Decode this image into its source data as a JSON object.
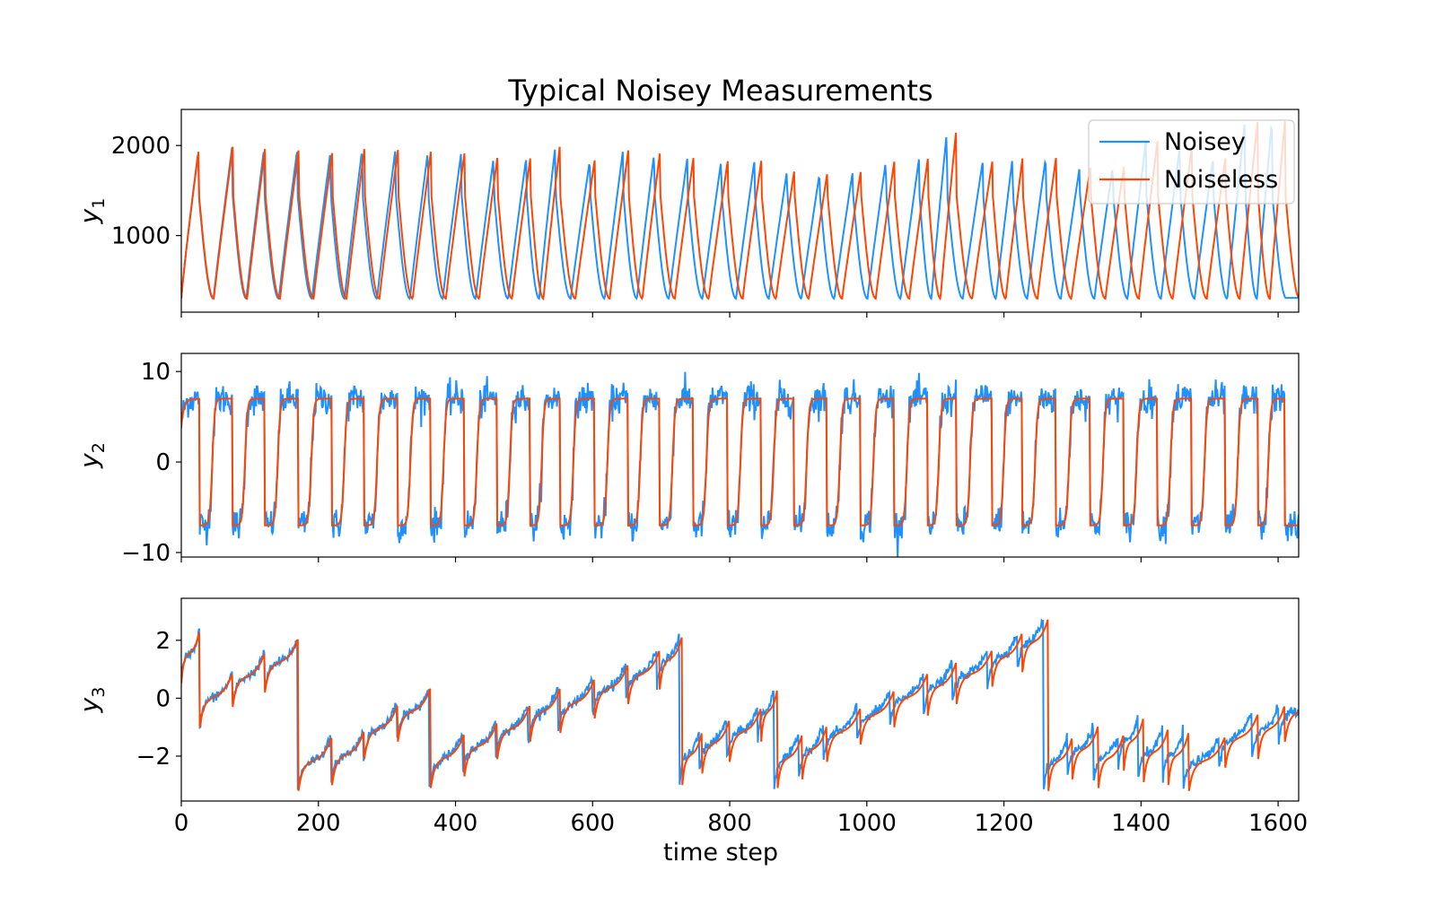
{
  "colors": {
    "noisy": "#1e90ff",
    "noiseless": "#ff4500"
  },
  "chart_data": {
    "type": "line",
    "title": "Typical Noisey Measurements",
    "xlabel": "time step",
    "xlim": [
      0,
      1630
    ],
    "x_ticks": [
      0,
      200,
      400,
      600,
      800,
      1000,
      1200,
      1400,
      1600
    ],
    "legend": {
      "position": "top-right",
      "entries": [
        "Noisey",
        "Noiseless"
      ]
    },
    "series_names": [
      "Noisey",
      "Noiseless"
    ],
    "subplots": [
      {
        "ylabel": "y_1",
        "ylim": [
          150,
          2400
        ],
        "yticks": [
          1000,
          2000
        ],
        "description": "sawtooth-like oscillation, minima about 300, peaks about 1700-2270; the Noisey trace progressively leads the Noiseless trace in phase",
        "noiseless_peaks": [
          [
            25,
            1930
          ],
          [
            75,
            1985
          ],
          [
            122,
            1960
          ],
          [
            171,
            1945
          ],
          [
            220,
            1915
          ],
          [
            267,
            1960
          ],
          [
            316,
            1950
          ],
          [
            364,
            1930
          ],
          [
            413,
            1910
          ],
          [
            461,
            1860
          ],
          [
            509,
            1855
          ],
          [
            552,
            1985
          ],
          [
            603,
            1835
          ],
          [
            652,
            1945
          ],
          [
            698,
            1910
          ],
          [
            747,
            1860
          ],
          [
            797,
            1825
          ],
          [
            846,
            1830
          ],
          [
            894,
            1710
          ],
          [
            942,
            1680
          ],
          [
            991,
            1705
          ],
          [
            1040,
            1820
          ],
          [
            1089,
            1850
          ],
          [
            1130,
            2140
          ],
          [
            1183,
            1820
          ],
          [
            1227,
            1855
          ],
          [
            1276,
            1860
          ],
          [
            1326,
            1750
          ],
          [
            1375,
            1760
          ],
          [
            1424,
            2050
          ],
          [
            1474,
            1975
          ],
          [
            1523,
            1855
          ],
          [
            1570,
            2260
          ],
          [
            1610,
            2270
          ]
        ],
        "noiseless_minimum": 300
      },
      {
        "ylabel": "y_2",
        "ylim": [
          -10.5,
          12
        ],
        "yticks": [
          -10,
          0,
          10
        ],
        "description": "square-wave-like signal switching between about +7 and -7 with about 34 cycles; Noisey trace has noise amplitude of roughly +/-2",
        "high_level": 7,
        "low_level": -7,
        "noise_amplitude": 2,
        "drop_times": [
          27,
          75,
          122,
          171,
          220,
          267,
          316,
          364,
          413,
          461,
          509,
          553,
          603,
          652,
          698,
          747,
          797,
          846,
          894,
          942,
          991,
          1040,
          1089,
          1131,
          1183,
          1227,
          1276,
          1326,
          1375,
          1424,
          1474,
          1523,
          1571,
          1610
        ]
      },
      {
        "ylabel": "y_3",
        "ylim": [
          -3.55,
          3.45
        ],
        "yticks": [
          -2,
          0,
          2
        ],
        "description": "stepwise phase-like signal wrapping between about -3.2 and +3.2; each cycle rises with a saturating curve then drops",
        "cycle_starts_and_baselines": [
          [
            0,
            0.5
          ],
          [
            27,
            -1.0
          ],
          [
            75,
            -0.3
          ],
          [
            122,
            0.2
          ],
          [
            171,
            -3.2
          ],
          [
            220,
            -3.0
          ],
          [
            267,
            -2.1
          ],
          [
            316,
            -1.5
          ],
          [
            364,
            -3.1
          ],
          [
            413,
            -2.7
          ],
          [
            461,
            -2.1
          ],
          [
            509,
            -1.5
          ],
          [
            553,
            -1.2
          ],
          [
            603,
            -0.7
          ],
          [
            652,
            -0.2
          ],
          [
            698,
            0.3
          ],
          [
            731,
            -3.0
          ],
          [
            760,
            -2.6
          ],
          [
            800,
            -2.2
          ],
          [
            846,
            -1.5
          ],
          [
            870,
            -3.1
          ],
          [
            906,
            -2.8
          ],
          [
            942,
            -2.2
          ],
          [
            991,
            -1.6
          ],
          [
            1040,
            -1.0
          ],
          [
            1089,
            -0.6
          ],
          [
            1131,
            -0.2
          ],
          [
            1183,
            0.4
          ],
          [
            1227,
            0.9
          ],
          [
            1265,
            -3.2
          ],
          [
            1300,
            -2.8
          ],
          [
            1338,
            -3.1
          ],
          [
            1375,
            -2.5
          ],
          [
            1404,
            -2.9
          ],
          [
            1440,
            -3.0
          ],
          [
            1470,
            -3.2
          ],
          [
            1523,
            -2.4
          ],
          [
            1571,
            -2.1
          ],
          [
            1610,
            -1.5
          ]
        ]
      }
    ]
  }
}
